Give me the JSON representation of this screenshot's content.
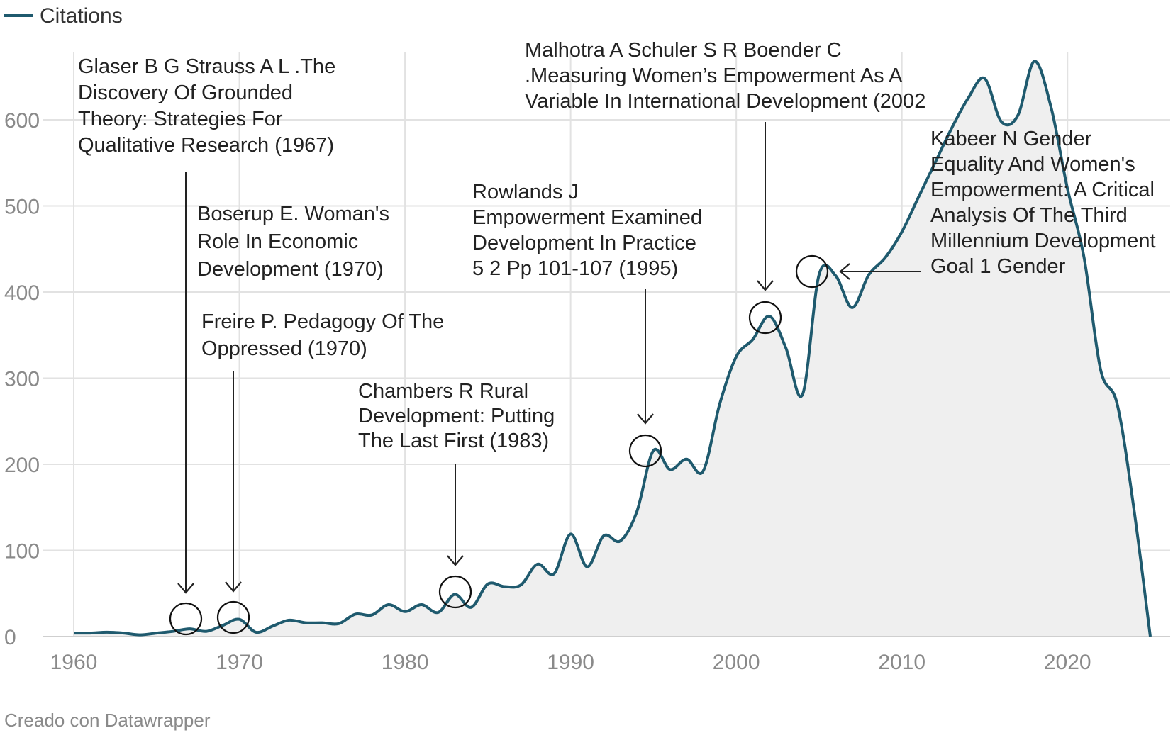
{
  "legend": {
    "label": "Citations",
    "color": "#1f5a6e"
  },
  "credit": "Creado con Datawrapper",
  "chart_data": {
    "type": "area",
    "title": "",
    "xlabel": "",
    "ylabel": "",
    "xlim": [
      1960,
      2025
    ],
    "ylim": [
      0,
      680
    ],
    "x_ticks": [
      "1960",
      "1970",
      "1980",
      "1990",
      "2000",
      "2010",
      "2020"
    ],
    "y_ticks": [
      "0",
      "100",
      "200",
      "300",
      "400",
      "500",
      "600"
    ],
    "grid": true,
    "legend_position": "top-left",
    "series": [
      {
        "name": "Citations",
        "color": "#1f5a6e",
        "x": [
          1960,
          1961,
          1962,
          1963,
          1964,
          1965,
          1966,
          1967,
          1968,
          1969,
          1970,
          1971,
          1972,
          1973,
          1974,
          1975,
          1976,
          1977,
          1978,
          1979,
          1980,
          1981,
          1982,
          1983,
          1984,
          1985,
          1986,
          1987,
          1988,
          1989,
          1990,
          1991,
          1992,
          1993,
          1994,
          1995,
          1996,
          1997,
          1998,
          1999,
          2000,
          2001,
          2002,
          2003,
          2004,
          2005,
          2006,
          2007,
          2008,
          2009,
          2010,
          2011,
          2012,
          2013,
          2014,
          2015,
          2016,
          2017,
          2018,
          2019,
          2020,
          2021,
          2022,
          2023,
          2024,
          2025
        ],
        "y": [
          4,
          4,
          5,
          4,
          2,
          4,
          6,
          9,
          6,
          13,
          20,
          5,
          12,
          19,
          16,
          16,
          15,
          26,
          25,
          37,
          29,
          37,
          28,
          49,
          34,
          61,
          58,
          60,
          84,
          73,
          119,
          81,
          117,
          111,
          145,
          216,
          194,
          206,
          192,
          270,
          325,
          345,
          372,
          335,
          281,
          420,
          419,
          382,
          420,
          440,
          470,
          510,
          550,
          590,
          625,
          648,
          598,
          605,
          668,
          615,
          520,
          440,
          310,
          270,
          150,
          0
        ]
      }
    ],
    "annotations": [
      {
        "year": 1967,
        "value": 18,
        "text_lines": [
          "Glaser B G Strauss A L .The",
          "Discovery Of Grounded",
          "Theory: Strategies For",
          "Qualitative Research (1967)"
        ]
      },
      {
        "year": 1970,
        "value": 20,
        "text_lines": [
          "Boserup E. Woman's",
          "Role In Economic",
          "Development (1970)"
        ]
      },
      {
        "year": 1970,
        "value": 20,
        "text_lines": [
          "Freire P. Pedagogy Of The",
          "Oppressed (1970)"
        ]
      },
      {
        "year": 1983,
        "value": 49,
        "text_lines": [
          "Chambers R Rural",
          "Development: Putting",
          "The Last First (1983)"
        ]
      },
      {
        "year": 1995,
        "value": 212,
        "text_lines": [
          "Rowlands J",
          "Empowerment Examined",
          "Development In Practice",
          "5 2 Pp 101-107 (1995)"
        ]
      },
      {
        "year": 2002,
        "value": 365,
        "text_lines": [
          "Malhotra A Schuler S R Boender C",
          ".Measuring Women’s Empowerment As A",
          "Variable In International Development (2002"
        ]
      },
      {
        "year": 2005,
        "value": 420,
        "text_lines": [
          "Kabeer N Gender",
          "Equality And Women's",
          "Empowerment: A Critical",
          "Analysis Of The Third",
          "Millennium Development",
          "Goal 1 Gender"
        ]
      }
    ]
  }
}
